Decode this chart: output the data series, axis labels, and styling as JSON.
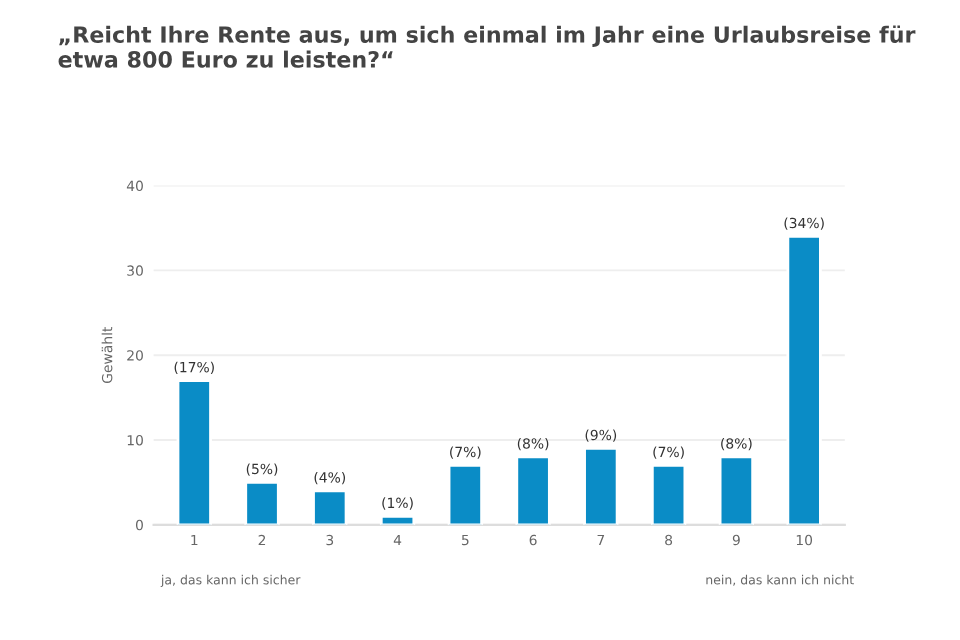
{
  "chart_data": {
    "type": "bar",
    "title": "„Reicht Ihre Rente aus, um sich einmal im Jahr eine Urlaubsreise für etwa 800 Euro zu leisten?“",
    "ylabel": "Gewählt",
    "categories": [
      "1",
      "2",
      "3",
      "4",
      "5",
      "6",
      "7",
      "8",
      "9",
      "10"
    ],
    "values": [
      17,
      5,
      4,
      1,
      7,
      8,
      9,
      7,
      8,
      34
    ],
    "value_labels": [
      "(17%)",
      "(5%)",
      "(4%)",
      "(1%)",
      "(7%)",
      "(8%)",
      "(9%)",
      "(7%)",
      "(8%)",
      "(34%)"
    ],
    "color": "#0a8cc6",
    "ylim": [
      0,
      40
    ],
    "yticks": [
      0,
      10,
      20,
      30,
      40
    ],
    "grid": "y",
    "annotations": [
      "ja, das kann ich sicher",
      "nein, das kann ich nicht"
    ]
  }
}
